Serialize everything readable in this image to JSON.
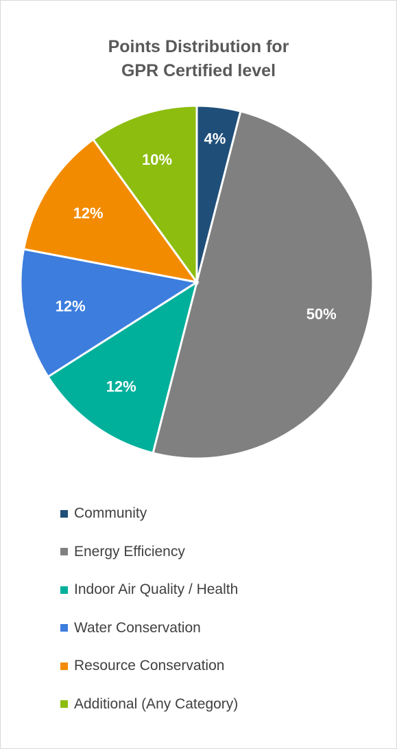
{
  "chart_data": {
    "type": "pie",
    "title": "Points Distribution for GPR Certified level",
    "title_lines": [
      "Points Distribution for",
      "GPR Certified level"
    ],
    "categories": [
      "Community",
      "Energy Efficiency",
      "Indoor Air Quality / Health",
      "Water Conservation",
      "Resource Conservation",
      "Additional (Any Category)"
    ],
    "values": [
      4,
      50,
      12,
      12,
      12,
      10
    ],
    "value_labels": [
      "4%",
      "50%",
      "12%",
      "12%",
      "12%",
      "10%"
    ],
    "colors": [
      "#1f4e79",
      "#808080",
      "#00b09b",
      "#3c7ddd",
      "#f38b00",
      "#8cbd0f"
    ],
    "legend_position": "bottom"
  }
}
